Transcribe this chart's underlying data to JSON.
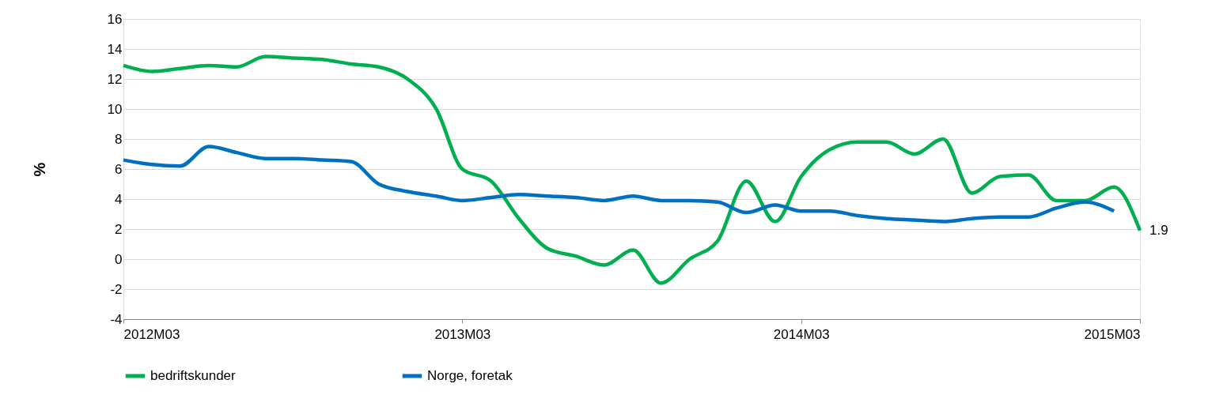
{
  "chart_data": {
    "type": "line",
    "ylabel": "%",
    "x": [
      "2012-03",
      "2012-04",
      "2012-05",
      "2012-06",
      "2012-07",
      "2012-08",
      "2012-09",
      "2012-10",
      "2012-11",
      "2012-12",
      "2013-01",
      "2013-02",
      "2013-03",
      "2013-04",
      "2013-05",
      "2013-06",
      "2013-07",
      "2013-08",
      "2013-09",
      "2013-10",
      "2013-11",
      "2013-12",
      "2014-01",
      "2014-02",
      "2014-03",
      "2014-04",
      "2014-05",
      "2014-06",
      "2014-07",
      "2014-08",
      "2014-09",
      "2014-10",
      "2014-11",
      "2014-12",
      "2015-01",
      "2015-02",
      "2015-03"
    ],
    "series": [
      {
        "name": "bedriftskunder",
        "color": "#00b050",
        "values": [
          12.9,
          12.5,
          12.7,
          12.9,
          12.8,
          13.5,
          13.4,
          13.3,
          13.0,
          12.8,
          12.0,
          10.0,
          6.0,
          5.2,
          2.7,
          0.7,
          0.2,
          -0.4,
          0.6,
          -1.6,
          0.0,
          1.2,
          5.2,
          2.5,
          5.5,
          7.3,
          7.8,
          7.8,
          7.0,
          8.0,
          4.4,
          5.5,
          5.6,
          3.9,
          3.9,
          4.8,
          1.9
        ]
      },
      {
        "name": "Norge, foretak",
        "color": "#0070c0",
        "values": [
          6.6,
          6.3,
          6.2,
          7.5,
          7.1,
          6.7,
          6.7,
          6.6,
          6.5,
          5.0,
          4.5,
          4.2,
          3.9,
          4.1,
          4.3,
          4.2,
          4.1,
          3.9,
          4.2,
          3.9,
          3.9,
          3.8,
          3.1,
          3.6,
          3.2,
          3.2,
          2.9,
          2.7,
          2.6,
          2.5,
          2.7,
          2.8,
          2.8,
          3.4,
          3.8,
          3.2,
          null
        ]
      }
    ],
    "xlim": [
      "2012-03",
      "2015-03"
    ],
    "xticks": [
      {
        "value": "2012-03",
        "label": "2012M03"
      },
      {
        "value": "2013-03",
        "label": "2013M03"
      },
      {
        "value": "2014-03",
        "label": "2014M03"
      },
      {
        "value": "2015-03",
        "label": "2015M03"
      }
    ],
    "ylim": [
      -4,
      16
    ],
    "yticks": [
      -4,
      -2,
      0,
      2,
      4,
      6,
      8,
      10,
      12,
      14,
      16
    ],
    "annotations": [
      {
        "text": "1.9",
        "x": "2015-03",
        "y": 1.9
      }
    ],
    "grid": "y",
    "legend": "bottom",
    "marker": "none",
    "line_style": "solid"
  }
}
